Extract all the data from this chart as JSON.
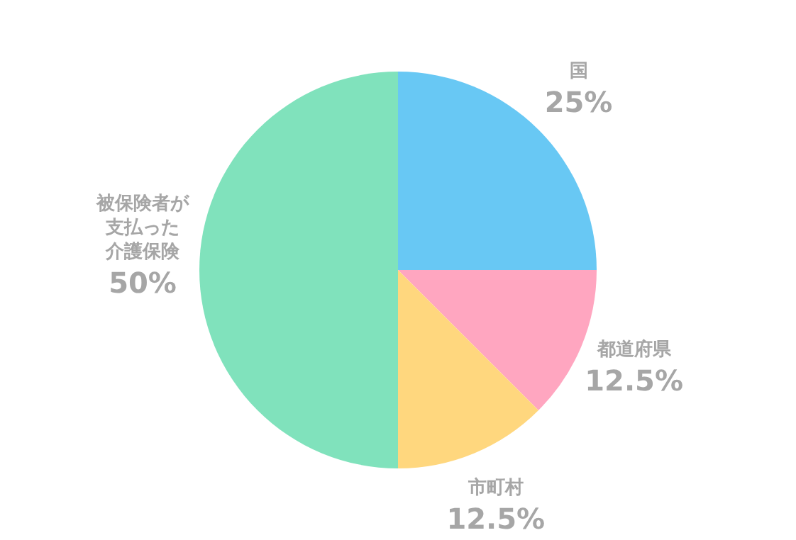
{
  "chart_data": {
    "type": "pie",
    "categories": [
      "国",
      "都道府県",
      "市町村",
      "被保険者が支払った介護保険"
    ],
    "values": [
      25,
      12.5,
      12.5,
      50
    ],
    "value_labels": [
      "25%",
      "12.5%",
      "12.5%",
      "50%"
    ],
    "colors": [
      "#68c8f4",
      "#ffa6c0",
      "#ffd77e",
      "#80e2bc"
    ],
    "legend": false
  }
}
